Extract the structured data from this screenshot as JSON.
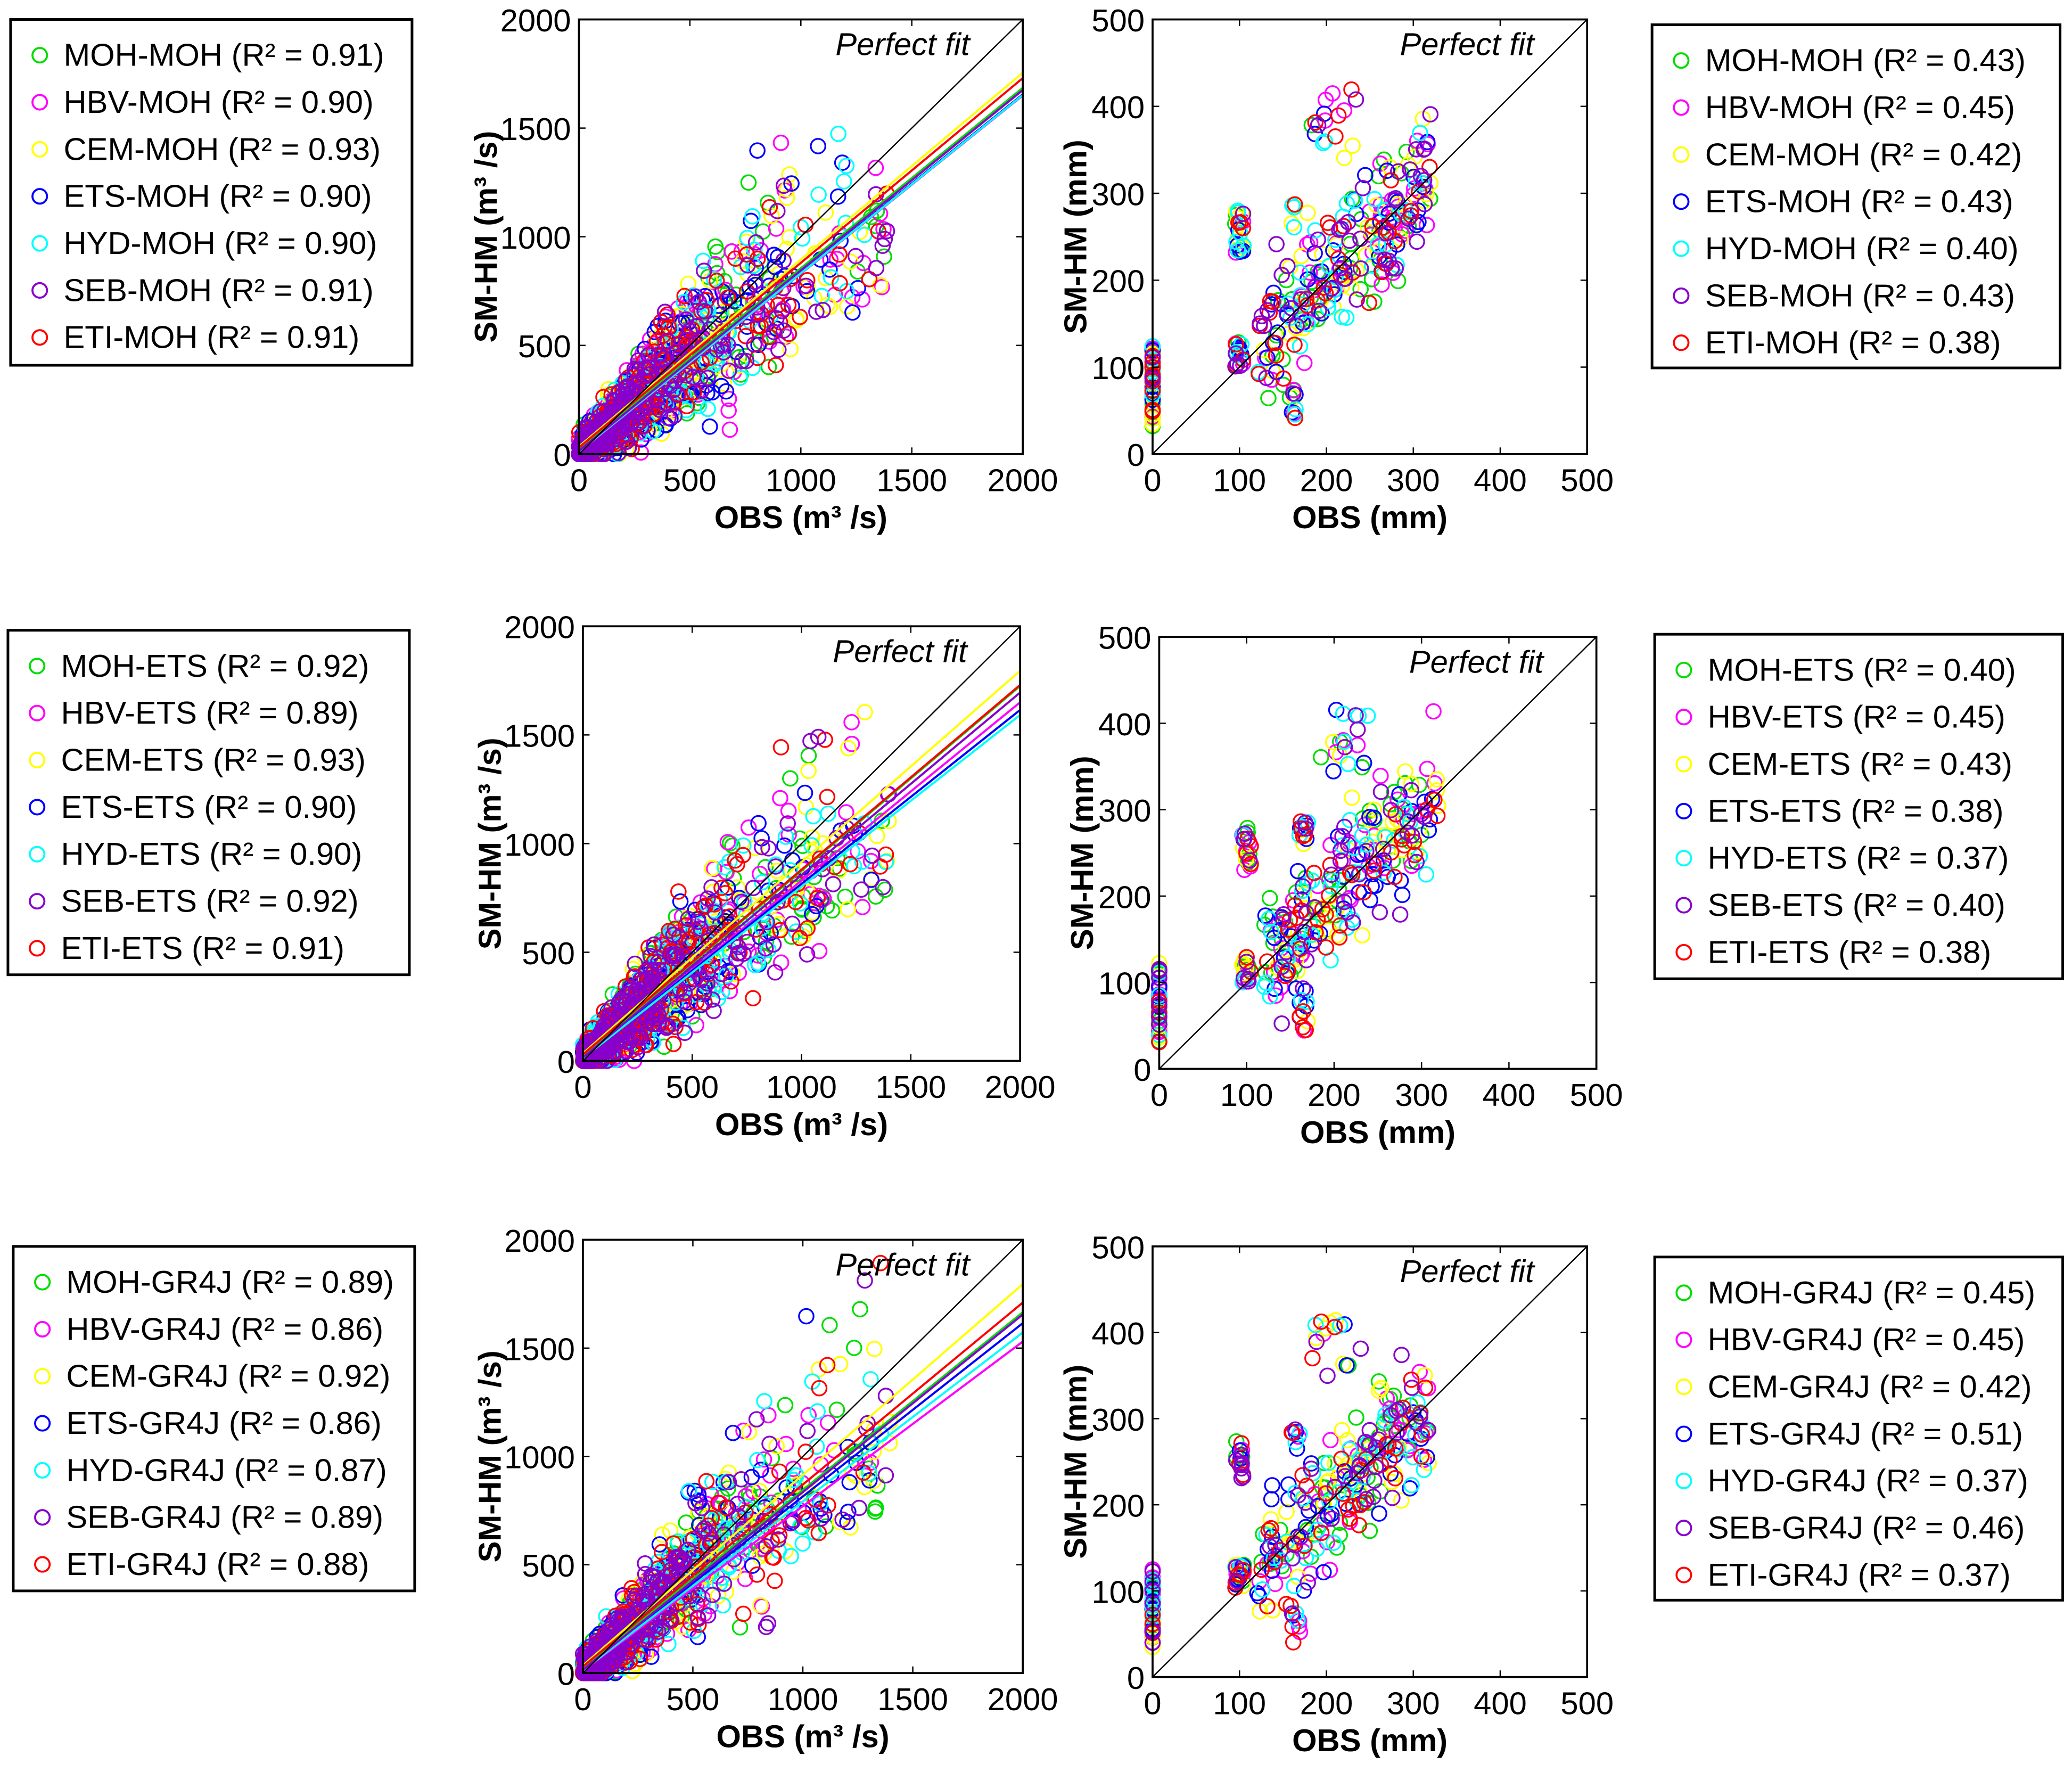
{
  "chart_data": [
    {
      "type": "scatter",
      "title": "",
      "xlabel": "OBS (m³ /s)",
      "ylabel": "SM-HM (m³ /s)",
      "xlim": [
        0,
        2000
      ],
      "ylim": [
        0,
        2000
      ],
      "xticks": [
        "0",
        "500",
        "1000",
        "1500",
        "2000"
      ],
      "yticks": [
        "0",
        "500",
        "1000",
        "1500",
        "2000"
      ],
      "annotation": "Perfect fit",
      "legend_position": "left-outside",
      "series": [
        {
          "name": "MOH-MOH",
          "label": "MOH-MOH (R² = 0.91)",
          "r2": 0.91,
          "color": "#00dd00",
          "fit": {
            "slope": 0.83,
            "intercept": 25
          }
        },
        {
          "name": "HBV-MOH",
          "label": "HBV-MOH (R² = 0.90)",
          "r2": 0.9,
          "color": "#ff00ff",
          "fit": {
            "slope": 0.82,
            "intercept": 10
          }
        },
        {
          "name": "CEM-MOH",
          "label": "CEM-MOH (R² = 0.93)",
          "r2": 0.93,
          "color": "#ffff00",
          "fit": {
            "slope": 0.86,
            "intercept": 35
          }
        },
        {
          "name": "ETS-MOH",
          "label": "ETS-MOH (R² = 0.90)",
          "r2": 0.9,
          "color": "#0000ff",
          "fit": {
            "slope": 0.82,
            "intercept": 15
          }
        },
        {
          "name": "HYD-MOH",
          "label": "HYD-MOH (R² = 0.90)",
          "r2": 0.9,
          "color": "#00ffff",
          "fit": {
            "slope": 0.82,
            "intercept": 12
          }
        },
        {
          "name": "SEB-MOH",
          "label": "SEB-MOH (R² = 0.91)",
          "r2": 0.91,
          "color": "#8800cc",
          "fit": {
            "slope": 0.83,
            "intercept": 15
          }
        },
        {
          "name": "ETI-MOH",
          "label": "ETI-MOH (R² = 0.91)",
          "r2": 0.91,
          "color": "#ff0000",
          "fit": {
            "slope": 0.85,
            "intercept": 30
          }
        }
      ]
    },
    {
      "type": "scatter",
      "title": "",
      "xlabel": "OBS (mm)",
      "ylabel": "SM-HM (mm)",
      "xlim": [
        0,
        500
      ],
      "ylim": [
        0,
        500
      ],
      "xticks": [
        "0",
        "100",
        "200",
        "300",
        "400",
        "500"
      ],
      "yticks": [
        "0",
        "100",
        "200",
        "300",
        "400",
        "500"
      ],
      "annotation": "Perfect fit",
      "legend_position": "right-outside",
      "series": [
        {
          "name": "MOH-MOH",
          "label": "MOH-MOH (R² = 0.43)",
          "r2": 0.43,
          "color": "#00dd00"
        },
        {
          "name": "HBV-MOH",
          "label": "HBV-MOH (R² = 0.45)",
          "r2": 0.45,
          "color": "#ff00ff"
        },
        {
          "name": "CEM-MOH",
          "label": "CEM-MOH (R² = 0.42)",
          "r2": 0.42,
          "color": "#ffff00"
        },
        {
          "name": "ETS-MOH",
          "label": "ETS-MOH (R² = 0.43)",
          "r2": 0.43,
          "color": "#0000ff"
        },
        {
          "name": "HYD-MOH",
          "label": "HYD-MOH (R² = 0.40)",
          "r2": 0.4,
          "color": "#00ffff"
        },
        {
          "name": "SEB-MOH",
          "label": "SEB-MOH (R² = 0.43)",
          "r2": 0.43,
          "color": "#8800cc"
        },
        {
          "name": "ETI-MOH",
          "label": "ETI-MOH (R² = 0.38)",
          "r2": 0.38,
          "color": "#ff0000"
        }
      ]
    },
    {
      "type": "scatter",
      "title": "",
      "xlabel": "OBS (m³ /s)",
      "ylabel": "SM-HM (m³ /s)",
      "xlim": [
        0,
        2000
      ],
      "ylim": [
        0,
        2000
      ],
      "xticks": [
        "0",
        "500",
        "1000",
        "1500",
        "2000"
      ],
      "yticks": [
        "0",
        "500",
        "1000",
        "1500",
        "2000"
      ],
      "annotation": "Perfect fit",
      "legend_position": "left-outside",
      "series": [
        {
          "name": "MOH-ETS",
          "label": "MOH-ETS (R² = 0.92)",
          "r2": 0.92,
          "color": "#00dd00",
          "fit": {
            "slope": 0.85,
            "intercept": 25
          }
        },
        {
          "name": "HBV-ETS",
          "label": "HBV-ETS (R² = 0.89)",
          "r2": 0.89,
          "color": "#ff00ff",
          "fit": {
            "slope": 0.82,
            "intercept": 10
          }
        },
        {
          "name": "CEM-ETS",
          "label": "CEM-ETS (R² = 0.93)",
          "r2": 0.93,
          "color": "#ffff00",
          "fit": {
            "slope": 0.88,
            "intercept": 35
          }
        },
        {
          "name": "ETS-ETS",
          "label": "ETS-ETS (R² = 0.90)",
          "r2": 0.9,
          "color": "#0000ff",
          "fit": {
            "slope": 0.8,
            "intercept": 15
          }
        },
        {
          "name": "HYD-ETS",
          "label": "HYD-ETS (R² = 0.90)",
          "r2": 0.9,
          "color": "#00ffff",
          "fit": {
            "slope": 0.79,
            "intercept": 12
          }
        },
        {
          "name": "SEB-ETS",
          "label": "SEB-ETS (R² = 0.92)",
          "r2": 0.92,
          "color": "#8800cc",
          "fit": {
            "slope": 0.84,
            "intercept": 15
          }
        },
        {
          "name": "ETI-ETS",
          "label": "ETI-ETS (R² = 0.91)",
          "r2": 0.91,
          "color": "#ff0000",
          "fit": {
            "slope": 0.85,
            "intercept": 30
          }
        }
      ]
    },
    {
      "type": "scatter",
      "title": "",
      "xlabel": "OBS (mm)",
      "ylabel": "SM-HM (mm)",
      "xlim": [
        0,
        500
      ],
      "ylim": [
        0,
        500
      ],
      "xticks": [
        "0",
        "100",
        "200",
        "300",
        "400",
        "500"
      ],
      "yticks": [
        "0",
        "100",
        "200",
        "300",
        "400",
        "500"
      ],
      "annotation": "Perfect fit",
      "legend_position": "right-outside",
      "series": [
        {
          "name": "MOH-ETS",
          "label": "MOH-ETS (R² = 0.40)",
          "r2": 0.4,
          "color": "#00dd00"
        },
        {
          "name": "HBV-ETS",
          "label": "HBV-ETS (R² = 0.45)",
          "r2": 0.45,
          "color": "#ff00ff"
        },
        {
          "name": "CEM-ETS",
          "label": "CEM-ETS (R² = 0.43)",
          "r2": 0.43,
          "color": "#ffff00"
        },
        {
          "name": "ETS-ETS",
          "label": "ETS-ETS (R² = 0.38)",
          "r2": 0.38,
          "color": "#0000ff"
        },
        {
          "name": "HYD-ETS",
          "label": "HYD-ETS (R² = 0.37)",
          "r2": 0.37,
          "color": "#00ffff"
        },
        {
          "name": "SEB-ETS",
          "label": "SEB-ETS (R² = 0.40)",
          "r2": 0.4,
          "color": "#8800cc"
        },
        {
          "name": "ETI-ETS",
          "label": "ETI-ETS (R² = 0.38)",
          "r2": 0.38,
          "color": "#ff0000"
        }
      ]
    },
    {
      "type": "scatter",
      "title": "",
      "xlabel": "OBS (m³ /s)",
      "ylabel": "SM-HM (m³ /s)",
      "xlim": [
        0,
        2000
      ],
      "ylim": [
        0,
        2000
      ],
      "xticks": [
        "0",
        "500",
        "1000",
        "1500",
        "2000"
      ],
      "yticks": [
        "0",
        "500",
        "1000",
        "1500",
        "2000"
      ],
      "annotation": "Perfect fit",
      "legend_position": "left-outside",
      "series": [
        {
          "name": "MOH-GR4J",
          "label": "MOH-GR4J (R² = 0.89)",
          "r2": 0.89,
          "color": "#00dd00",
          "fit": {
            "slope": 0.82,
            "intercept": 25
          }
        },
        {
          "name": "HBV-GR4J",
          "label": "HBV-GR4J (R² = 0.86)",
          "r2": 0.86,
          "color": "#ff00ff",
          "fit": {
            "slope": 0.76,
            "intercept": 10
          }
        },
        {
          "name": "CEM-GR4J",
          "label": "CEM-GR4J (R² = 0.92)",
          "r2": 0.92,
          "color": "#ffff00",
          "fit": {
            "slope": 0.88,
            "intercept": 35
          }
        },
        {
          "name": "ETS-GR4J",
          "label": "ETS-GR4J (R² = 0.86)",
          "r2": 0.86,
          "color": "#0000ff",
          "fit": {
            "slope": 0.8,
            "intercept": 15
          }
        },
        {
          "name": "HYD-GR4J",
          "label": "HYD-GR4J (R² = 0.87)",
          "r2": 0.87,
          "color": "#00ffff",
          "fit": {
            "slope": 0.78,
            "intercept": 12
          }
        },
        {
          "name": "SEB-GR4J",
          "label": "SEB-GR4J (R² = 0.89)",
          "r2": 0.89,
          "color": "#8800cc",
          "fit": {
            "slope": 0.82,
            "intercept": 15
          }
        },
        {
          "name": "ETI-GR4J",
          "label": "ETI-GR4J (R² = 0.88)",
          "r2": 0.88,
          "color": "#ff0000",
          "fit": {
            "slope": 0.84,
            "intercept": 30
          }
        }
      ]
    },
    {
      "type": "scatter",
      "title": "",
      "xlabel": "OBS (mm)",
      "ylabel": "SM-HM (mm)",
      "xlim": [
        0,
        500
      ],
      "ylim": [
        0,
        500
      ],
      "xticks": [
        "0",
        "100",
        "200",
        "300",
        "400",
        "500"
      ],
      "yticks": [
        "0",
        "100",
        "200",
        "300",
        "400",
        "500"
      ],
      "annotation": "Perfect fit",
      "legend_position": "right-outside",
      "series": [
        {
          "name": "MOH-GR4J",
          "label": "MOH-GR4J (R² = 0.45)",
          "r2": 0.45,
          "color": "#00dd00"
        },
        {
          "name": "HBV-GR4J",
          "label": "HBV-GR4J (R² = 0.45)",
          "r2": 0.45,
          "color": "#ff00ff"
        },
        {
          "name": "CEM-GR4J",
          "label": "CEM-GR4J (R² = 0.42)",
          "r2": 0.42,
          "color": "#ffff00"
        },
        {
          "name": "ETS-GR4J",
          "label": "ETS-GR4J (R² = 0.51)",
          "r2": 0.51,
          "color": "#0000ff"
        },
        {
          "name": "HYD-GR4J",
          "label": "HYD-GR4J (R² = 0.37)",
          "r2": 0.37,
          "color": "#00ffff"
        },
        {
          "name": "SEB-GR4J",
          "label": "SEB-GR4J (R² = 0.46)",
          "r2": 0.46,
          "color": "#8800cc"
        },
        {
          "name": "ETI-GR4J",
          "label": "ETI-GR4J (R² = 0.37)",
          "r2": 0.37,
          "color": "#ff0000"
        }
      ]
    }
  ]
}
